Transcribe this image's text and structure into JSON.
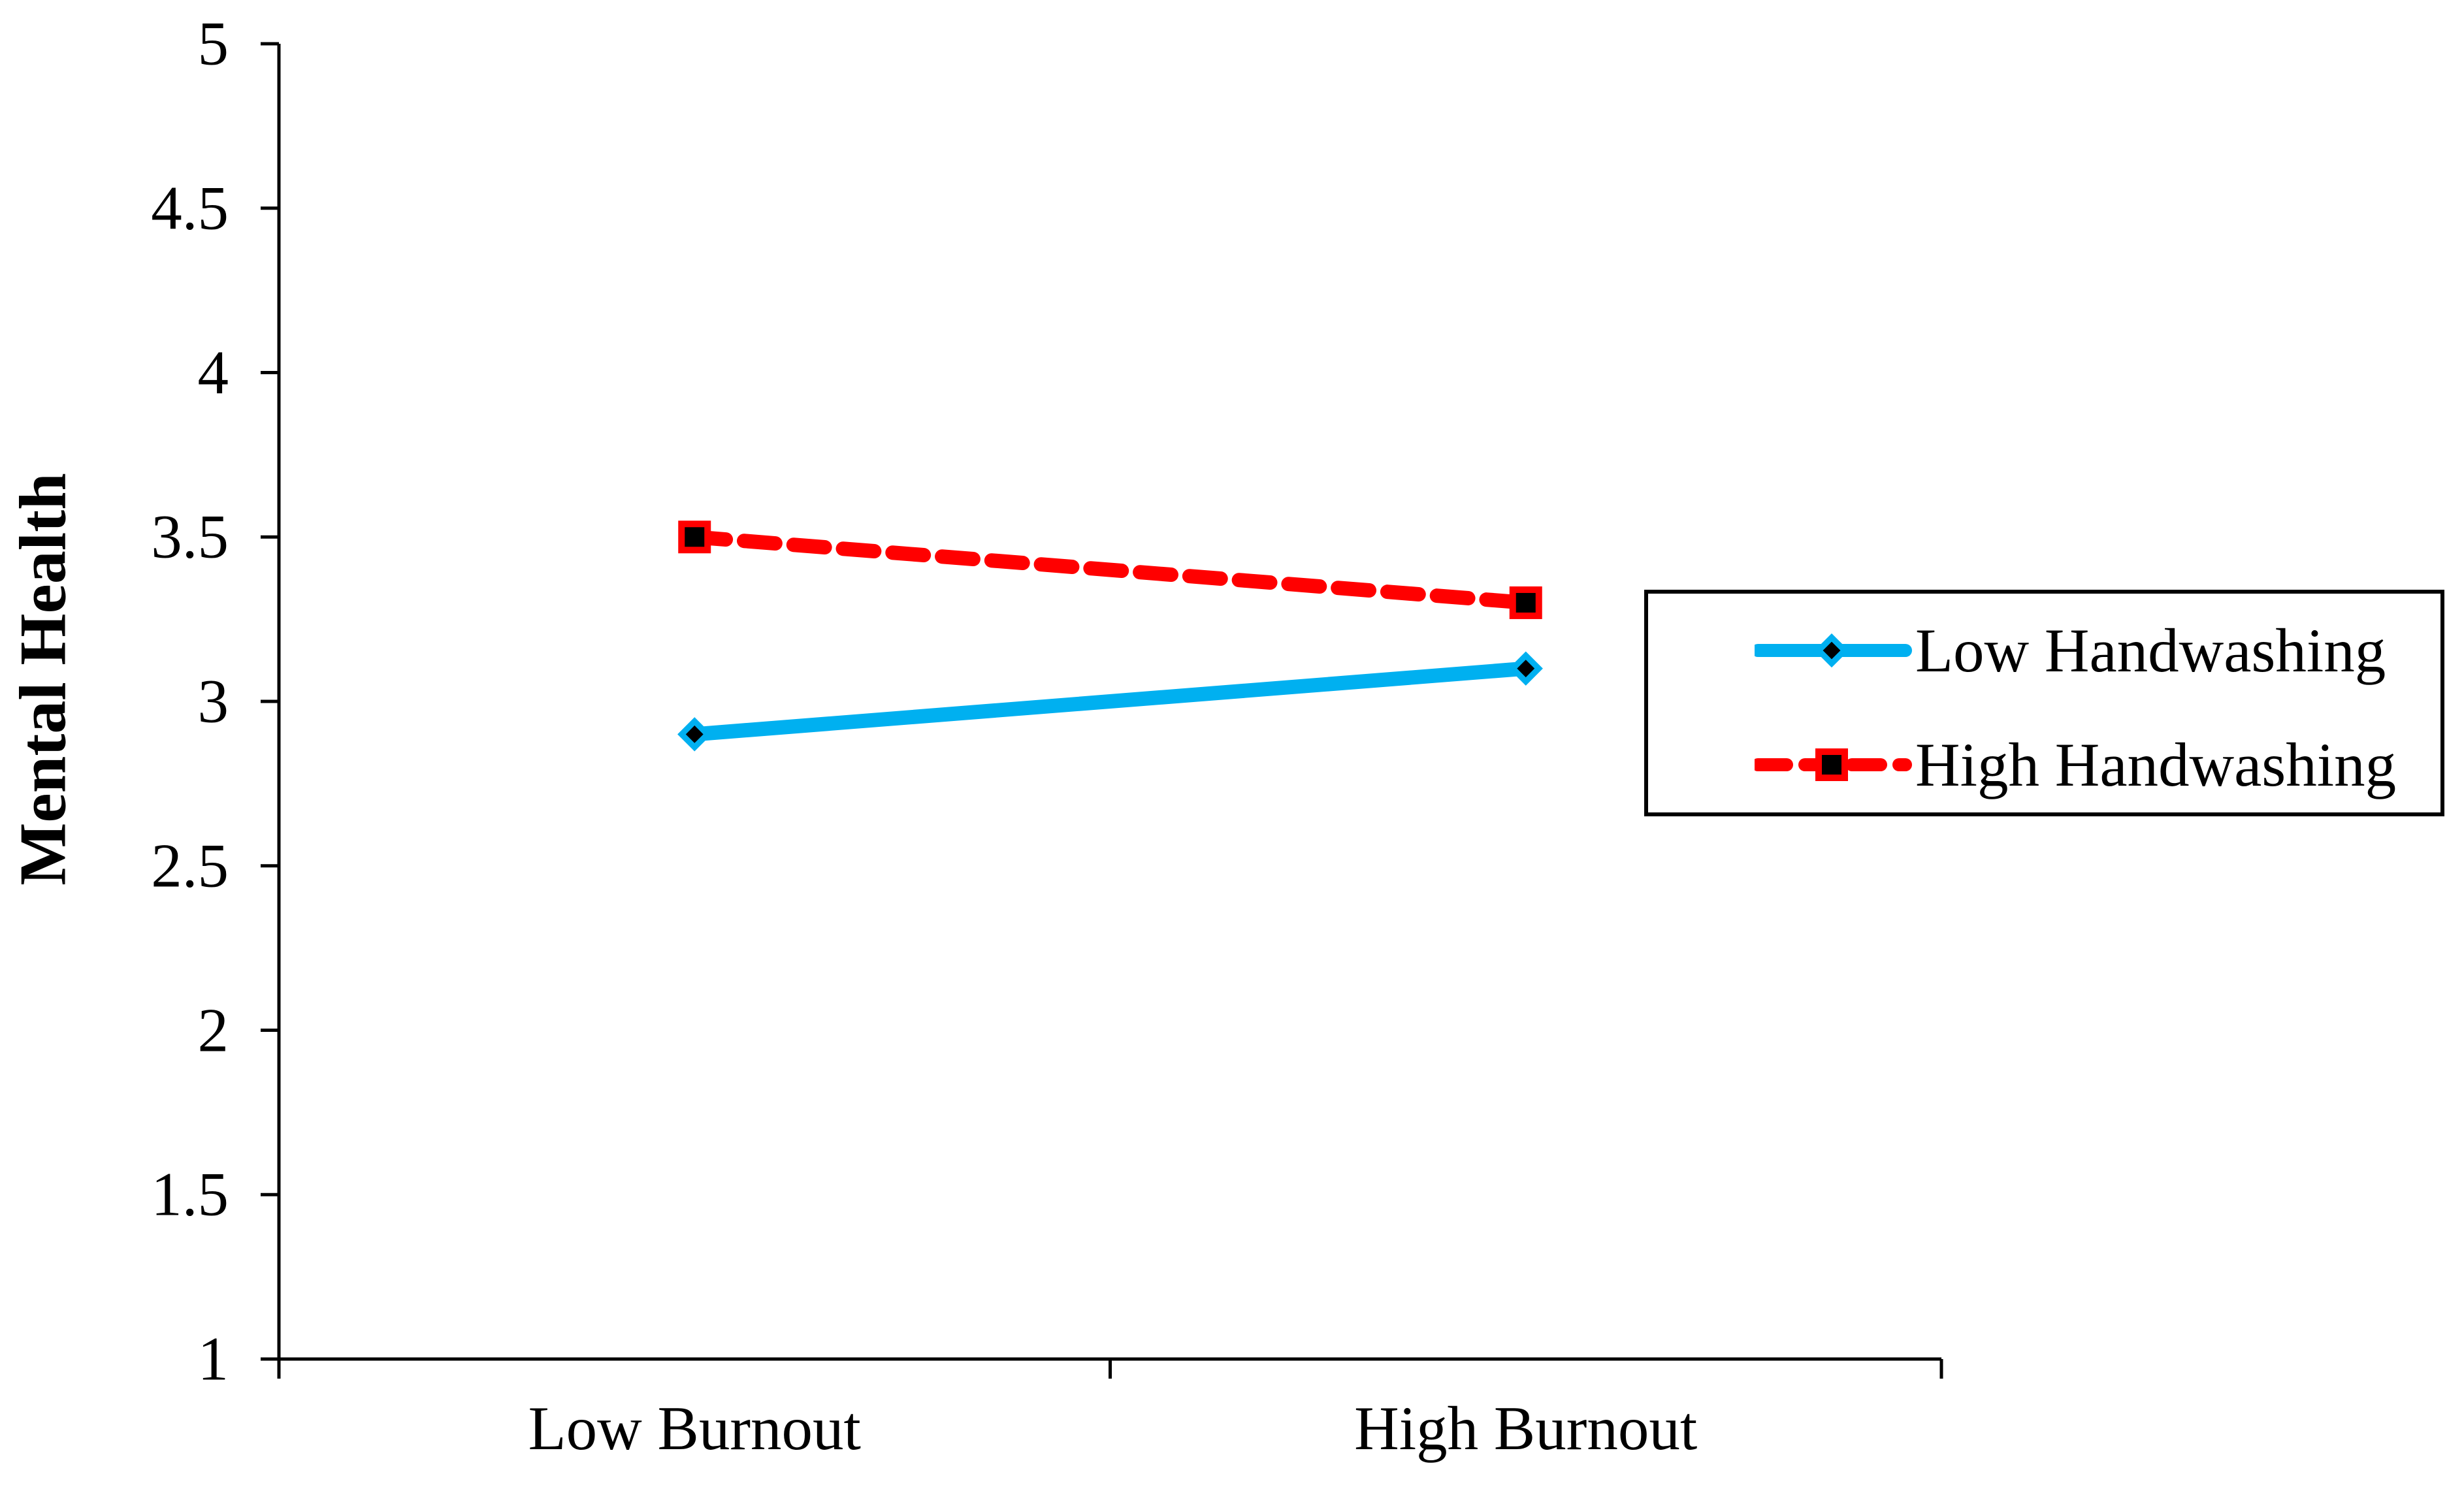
{
  "chart_data": {
    "type": "line",
    "title": "",
    "xlabel": "",
    "ylabel": "Mental Health",
    "categories": [
      "Low Burnout",
      "High Burnout"
    ],
    "series": [
      {
        "name": "Low Handwashing",
        "values": [
          2.9,
          3.1
        ],
        "color": "#00B0F0",
        "line_style": "solid",
        "marker": "diamond",
        "marker_fill": "#000000"
      },
      {
        "name": "High Handwashing",
        "values": [
          3.5,
          3.3
        ],
        "color": "#FF0000",
        "line_style": "dashed",
        "marker": "square",
        "marker_fill": "#000000"
      }
    ],
    "ylim": [
      1,
      5
    ],
    "ytick_step": 0.5,
    "y_ticks": [
      "5",
      "4.5",
      "4",
      "3.5",
      "3",
      "2.5",
      "2",
      "1.5",
      "1"
    ],
    "grid": false,
    "legend_position": "right",
    "axis_color": "#000000",
    "background_color": "#FFFFFF"
  }
}
